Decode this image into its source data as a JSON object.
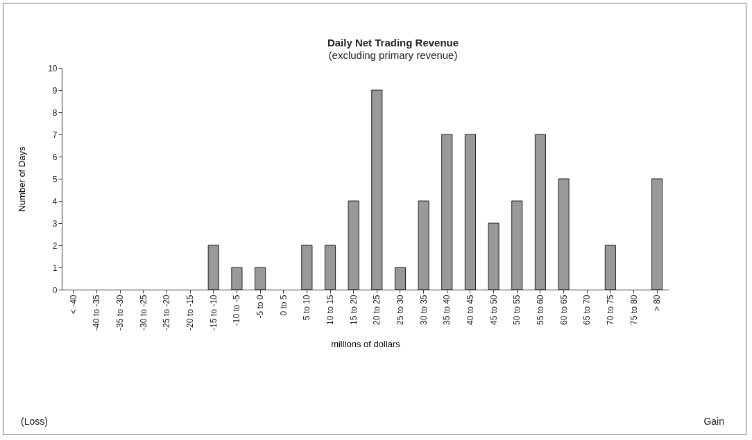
{
  "chart_data": {
    "type": "bar",
    "title": "Daily Net Trading Revenue",
    "subtitle": "(excluding primary revenue)",
    "xlabel": "millions of dollars",
    "ylabel": "Number of Days",
    "categories": [
      "< -40",
      "-40 to -35",
      "-35 to -30",
      "-30 to -25",
      "-25 to -20",
      "-20 to -15",
      "-15 to -10",
      "-10 to -5",
      "-5 to 0",
      "0 to 5",
      "5 to 10",
      "10 to 15",
      "15 to 20",
      "20 to 25",
      "25 to 30",
      "30 to 35",
      "35 to 40",
      "40 to 45",
      "45 to 50",
      "50 to 55",
      "55 to 60",
      "60 to 65",
      "65 to 70",
      "70 to 75",
      "75 to 80",
      "> 80"
    ],
    "values": [
      0,
      0,
      0,
      0,
      0,
      0,
      2,
      1,
      1,
      0,
      2,
      2,
      4,
      9,
      1,
      4,
      7,
      7,
      3,
      4,
      7,
      5,
      0,
      2,
      0,
      5
    ],
    "color": "#999999",
    "ylim": [
      0,
      10
    ],
    "yticks": [
      0,
      1,
      2,
      3,
      4,
      5,
      6,
      7,
      8,
      9,
      10
    ],
    "annotations": [
      "(Loss)",
      "Gain"
    ]
  }
}
